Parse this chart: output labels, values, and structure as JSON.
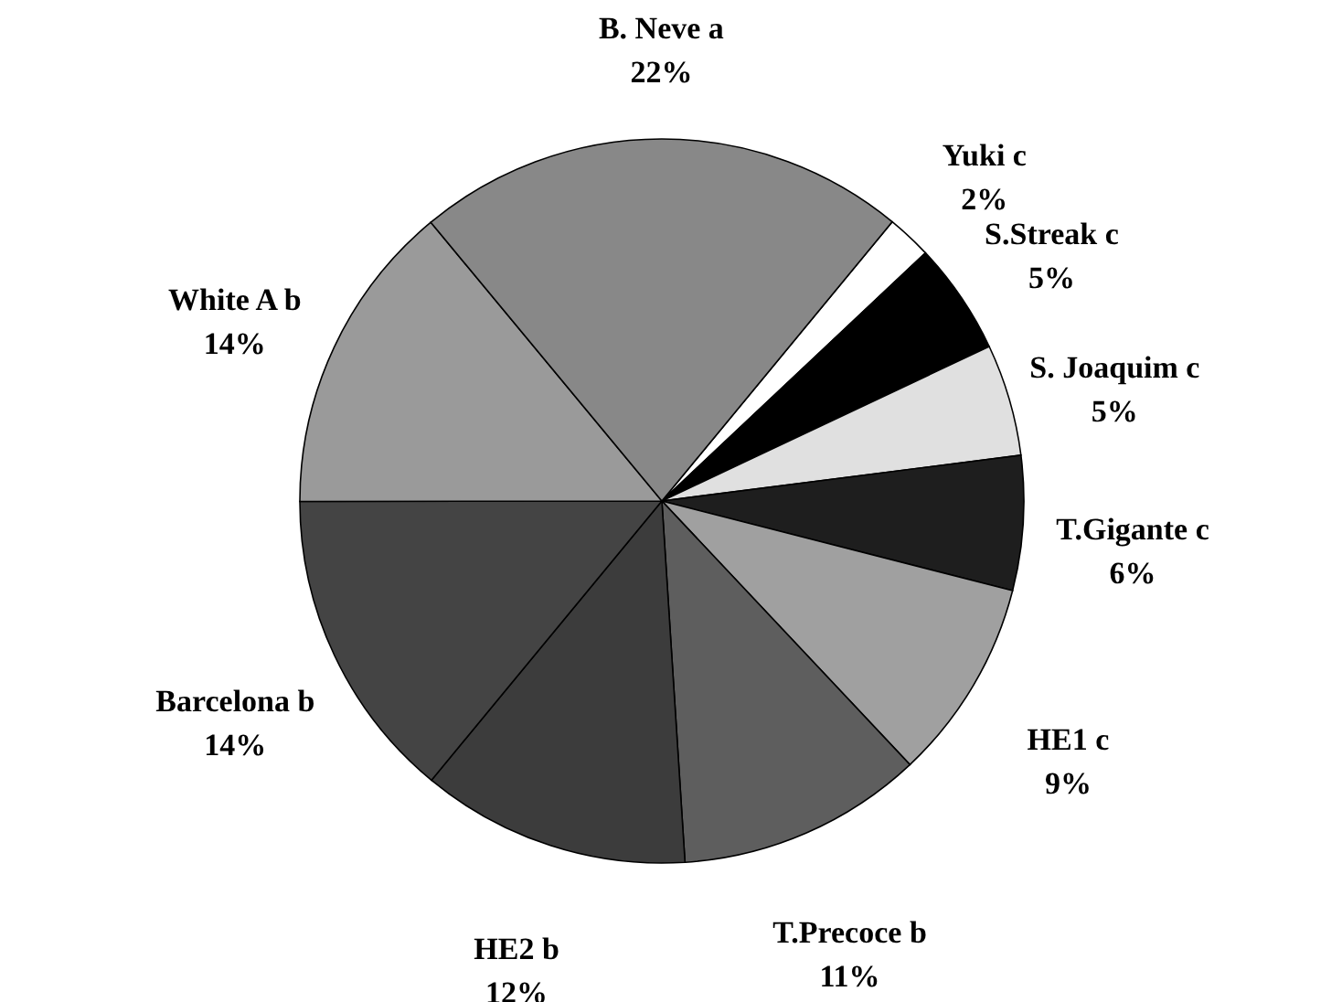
{
  "chart_data": {
    "type": "pie",
    "categories": [
      "Yuki c",
      "S.Streak c",
      "S. Joaquim c",
      "T.Gigante c",
      "HE1 c",
      "T.Precoce b",
      "HE2 b",
      "Barcelona b",
      "White A b",
      "B. Neve a"
    ],
    "values": [
      2,
      5,
      5,
      6,
      9,
      11,
      12,
      14,
      14,
      22
    ],
    "value_labels": [
      "2%",
      "5%",
      "5%",
      "6%",
      "9%",
      "11%",
      "12%",
      "14%",
      "14%",
      "22%"
    ],
    "colors": [
      "#ffffff",
      "#000000",
      "#e0e0e0",
      "#1e1e1e",
      "#a0a0a0",
      "#5e5e5e",
      "#3c3c3c",
      "#444444",
      "#9a9a9a",
      "#888888"
    ]
  }
}
